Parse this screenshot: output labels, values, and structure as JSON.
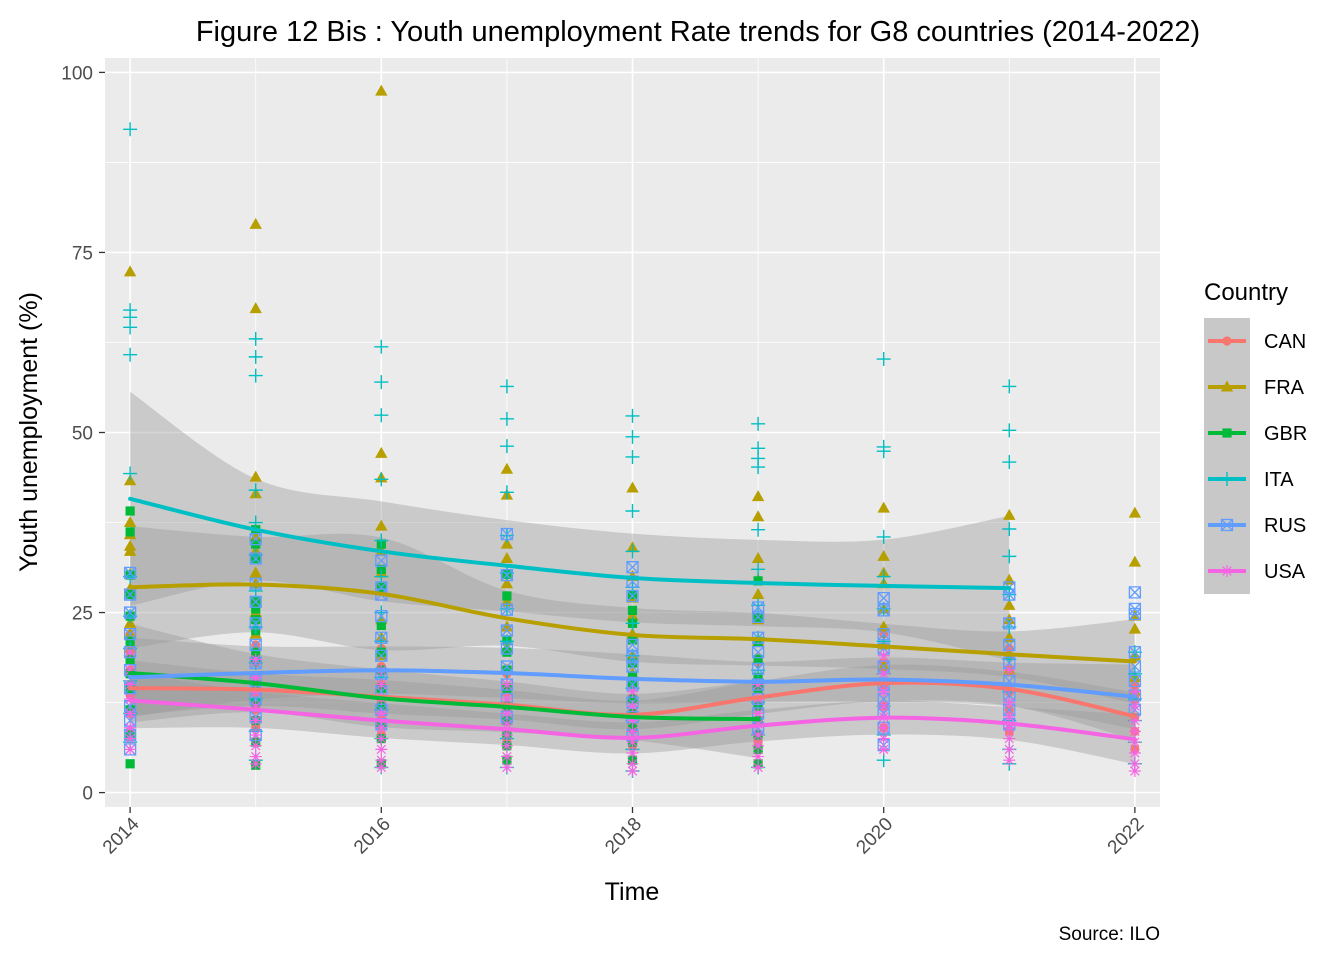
{
  "chart_data": {
    "type": "scatter",
    "title": "Figure 12 Bis : Youth unemployment Rate trends for G8 countries (2014-2022)",
    "xlabel": "Time",
    "ylabel": "Youth unemployment (%)",
    "caption": "Source: ILO",
    "xlim": [
      2013.8,
      2022.2
    ],
    "ylim": [
      -2,
      102
    ],
    "x_ticks": [
      "2014",
      "2016",
      "2018",
      "2020",
      "2022"
    ],
    "y_ticks": [
      "0",
      "25",
      "50",
      "75",
      "100"
    ],
    "grid": true,
    "smoothing": "loess with confidence band",
    "legend": {
      "title": "Country",
      "position": "right"
    },
    "series": [
      {
        "name": "CAN",
        "color": "#F8766D",
        "marker": "circle",
        "trend": {
          "x": [
            2014,
            2015,
            2016,
            2017,
            2018,
            2019,
            2020,
            2021,
            2022
          ],
          "y": [
            14.5,
            14.3,
            13.3,
            12.2,
            10.8,
            13.2,
            15.2,
            14.4,
            10.6
          ]
        },
        "points": [
          {
            "x": 2014,
            "y": [
              8.5,
              11,
              13.5,
              15,
              17,
              19.5,
              22
            ]
          },
          {
            "x": 2015,
            "y": [
              9,
              11.5,
              14,
              15.5,
              18,
              20.5
            ]
          },
          {
            "x": 2016,
            "y": [
              8,
              10.5,
              13,
              15,
              17.5,
              20
            ]
          },
          {
            "x": 2017,
            "y": [
              7.5,
              10,
              12,
              14,
              16.5
            ]
          },
          {
            "x": 2018,
            "y": [
              6.5,
              9,
              11,
              13,
              15
            ]
          },
          {
            "x": 2019,
            "y": [
              7,
              10,
              12.5,
              15,
              18
            ]
          },
          {
            "x": 2020,
            "y": [
              9,
              12,
              15,
              18,
              22
            ]
          },
          {
            "x": 2021,
            "y": [
              8.5,
              11.5,
              14,
              17,
              20
            ]
          },
          {
            "x": 2022,
            "y": [
              6,
              8.5,
              10.5,
              13,
              15
            ]
          }
        ]
      },
      {
        "name": "FRA",
        "color": "#B79F00",
        "marker": "triangle",
        "trend": {
          "x": [
            2014,
            2015,
            2016,
            2017,
            2018,
            2019,
            2020,
            2021,
            2022
          ],
          "y": [
            28.5,
            28.9,
            27.6,
            24.2,
            21.9,
            21.3,
            20.3,
            19.2,
            18.2
          ]
        },
        "points": [
          {
            "x": 2014,
            "y": [
              72.3,
              43.3,
              37.5,
              35.8,
              34.2,
              33.5,
              30.3,
              28.3,
              23.5,
              22,
              20
            ]
          },
          {
            "x": 2015,
            "y": [
              78.9,
              67.2,
              43.8,
              41.5,
              35.5,
              33.5,
              30.5,
              29,
              25,
              22,
              19
            ]
          },
          {
            "x": 2016,
            "y": [
              97.4,
              47.1,
              43.7,
              37,
              33.5,
              30.5,
              28,
              24,
              21.5,
              19
            ]
          },
          {
            "x": 2017,
            "y": [
              44.9,
              41.3,
              34.5,
              32.5,
              29,
              26.5,
              23,
              20,
              17
            ]
          },
          {
            "x": 2018,
            "y": [
              42.3,
              34,
              30,
              27,
              24.5,
              22,
              19,
              16.5,
              13
            ]
          },
          {
            "x": 2019,
            "y": [
              41.1,
              38.3,
              32.5,
              29.5,
              27.5,
              24,
              21,
              18.5,
              15
            ]
          },
          {
            "x": 2020,
            "y": [
              39.5,
              32.8,
              30.5,
              29,
              25.5,
              23,
              20.5,
              17.5
            ]
          },
          {
            "x": 2021,
            "y": [
              38.5,
              29.5,
              26,
              24,
              21.5,
              19,
              17
            ]
          },
          {
            "x": 2022,
            "y": [
              38.8,
              32,
              24.5,
              22.7,
              19,
              16,
              14
            ]
          }
        ]
      },
      {
        "name": "GBR",
        "color": "#00BA38",
        "marker": "square",
        "trend": {
          "x": [
            2014,
            2015,
            2016,
            2017,
            2018,
            2019
          ],
          "y": [
            16.6,
            15.2,
            13.1,
            11.9,
            10.5,
            10.2
          ]
        },
        "points": [
          {
            "x": 2014,
            "y": [
              39.1,
              36.2,
              30.2,
              27.5,
              24.5,
              21,
              18.5,
              16.5,
              14.3,
              11.5,
              8,
              4
            ]
          },
          {
            "x": 2015,
            "y": [
              36.5,
              34.5,
              32.5,
              26.5,
              25.5,
              24,
              22.5,
              19.5,
              18.5,
              15,
              12.5,
              10,
              7,
              3.8
            ]
          },
          {
            "x": 2016,
            "y": [
              34.5,
              31,
              28.5,
              23.2,
              19.5,
              17,
              14.5,
              12,
              9.5,
              7.5,
              4
            ]
          },
          {
            "x": 2017,
            "y": [
              30.3,
              27.3,
              21.2,
              19.5,
              17,
              14.5,
              12,
              10,
              8,
              6.5,
              4.5
            ]
          },
          {
            "x": 2018,
            "y": [
              27.5,
              25.3,
              23.5,
              21.2,
              18,
              16.2,
              15.2,
              13,
              11,
              9,
              7,
              4.5
            ]
          },
          {
            "x": 2019,
            "y": [
              29.4,
              24.3,
              21,
              18.5,
              16,
              14.5,
              12,
              10,
              8,
              6,
              4
            ]
          }
        ]
      },
      {
        "name": "ITA",
        "color": "#00BFC4",
        "marker": "plus",
        "trend": {
          "x": [
            2014,
            2015,
            2016,
            2017,
            2018,
            2019,
            2020,
            2021
          ],
          "y": [
            40.8,
            36.5,
            33.5,
            31.5,
            29.8,
            29.1,
            28.7,
            28.4
          ]
        },
        "points": [
          {
            "x": 2014,
            "y": [
              92.1,
              67,
              66,
              64.6,
              60.8,
              44.3,
              30,
              24.5,
              20,
              15.5,
              11,
              7
            ]
          },
          {
            "x": 2015,
            "y": [
              63,
              60.5,
              57.9,
              42,
              37.5,
              33,
              28,
              23,
              18,
              13,
              8.5,
              4.5
            ]
          },
          {
            "x": 2016,
            "y": [
              61.9,
              57,
              52.4,
              43.5,
              35,
              30,
              25,
              21,
              16,
              11.5,
              7.5,
              3.5
            ]
          },
          {
            "x": 2017,
            "y": [
              56.4,
              51.9,
              48.1,
              41.7,
              35.7,
              30.5,
              25.5,
              21,
              16.5,
              12,
              7.5,
              3.5
            ]
          },
          {
            "x": 2018,
            "y": [
              52.3,
              49.4,
              46.6,
              39.1,
              33.5,
              28.5,
              23.5,
              19,
              14.5,
              10,
              6,
              3
            ]
          },
          {
            "x": 2019,
            "y": [
              51.2,
              47.8,
              46.4,
              45.2,
              36.5,
              31,
              26,
              21.5,
              17,
              12.5,
              8,
              3.5
            ]
          },
          {
            "x": 2020,
            "y": [
              60.2,
              48,
              47.4,
              35.5,
              30,
              25.5,
              21,
              16.5,
              12,
              8,
              4.5
            ]
          },
          {
            "x": 2021,
            "y": [
              56.4,
              50.3,
              45.9,
              36.6,
              32.8,
              27.5,
              23,
              18.5,
              14,
              10,
              6,
              4
            ]
          },
          {
            "x": 2022,
            "y": [
              19.5,
              16.5,
              13,
              10,
              7,
              4
            ]
          }
        ]
      },
      {
        "name": "RUS",
        "color": "#619CFF",
        "marker": "square-x",
        "trend": {
          "x": [
            2014,
            2015,
            2016,
            2017,
            2018,
            2019,
            2020,
            2021,
            2022
          ],
          "y": [
            16.0,
            16.6,
            17.0,
            16.6,
            15.8,
            15.4,
            15.7,
            15.0,
            13.3
          ]
        },
        "points": [
          {
            "x": 2014,
            "y": [
              30.5,
              27.5,
              25,
              22,
              19.5,
              17,
              14.5,
              12,
              10,
              8,
              6
            ]
          },
          {
            "x": 2015,
            "y": [
              35.2,
              32.5,
              29,
              26.5,
              23.5,
              20.5,
              18,
              15.5,
              13,
              10.5,
              8
            ]
          },
          {
            "x": 2016,
            "y": [
              32.2,
              28.5,
              27.5,
              24.5,
              21.5,
              19,
              16.5,
              14,
              11.5,
              9.5
            ]
          },
          {
            "x": 2017,
            "y": [
              35.9,
              30.2,
              25.4,
              22.5,
              20,
              17.5,
              15,
              13,
              10.5
            ]
          },
          {
            "x": 2018,
            "y": [
              31.3,
              29.3,
              27.3,
              20.5,
              18.8,
              17.5,
              15,
              12.5,
              10.5,
              8
            ]
          },
          {
            "x": 2019,
            "y": [
              25.7,
              24.4,
              21.5,
              19.5,
              17.2,
              15,
              13,
              11,
              9
            ]
          },
          {
            "x": 2020,
            "y": [
              27,
              25.3,
              22,
              20,
              17.5,
              15,
              13,
              11,
              9,
              6.6
            ]
          },
          {
            "x": 2021,
            "y": [
              28.5,
              27.5,
              23.5,
              20.5,
              18,
              15.5,
              13.5,
              11.5,
              9.5
            ]
          },
          {
            "x": 2022,
            "y": [
              27.8,
              25.5,
              24.8,
              19.5,
              17.5,
              15.5,
              13.5,
              11.5
            ]
          }
        ]
      },
      {
        "name": "USA",
        "color": "#F564E3",
        "marker": "asterisk",
        "trend": {
          "x": [
            2014,
            2015,
            2016,
            2017,
            2018,
            2019,
            2020,
            2021,
            2022
          ],
          "y": [
            12.8,
            11.5,
            10.0,
            8.8,
            7.6,
            9.3,
            10.4,
            9.6,
            7.4
          ]
        },
        "points": [
          {
            "x": 2014,
            "y": [
              19.5,
              17,
              15,
              13,
              11,
              9,
              7.5,
              6
            ]
          },
          {
            "x": 2015,
            "y": [
              18.5,
              16,
              14,
              12,
              10,
              8,
              6.5,
              5,
              4
            ]
          },
          {
            "x": 2016,
            "y": [
              17,
              15,
              13,
              11,
              9,
              7.5,
              6,
              4.5,
              3.5
            ]
          },
          {
            "x": 2017,
            "y": [
              15,
              13,
              11,
              9.5,
              8,
              6.5,
              5,
              3.5
            ]
          },
          {
            "x": 2018,
            "y": [
              14,
              12,
              10,
              8.5,
              7,
              5.5,
              4,
              3
            ]
          },
          {
            "x": 2019,
            "y": [
              15,
              13,
              11,
              9.5,
              8,
              6.5,
              5,
              3.5
            ]
          },
          {
            "x": 2020,
            "y": [
              19,
              16.5,
              14,
              12,
              10.5,
              9,
              7.5,
              6
            ]
          },
          {
            "x": 2021,
            "y": [
              17,
              14.5,
              12.5,
              10.5,
              9,
              7.5,
              6,
              4.5
            ]
          },
          {
            "x": 2022,
            "y": [
              14,
              12,
              10,
              8.5,
              7,
              5.5,
              4,
              3
            ]
          }
        ]
      }
    ]
  }
}
